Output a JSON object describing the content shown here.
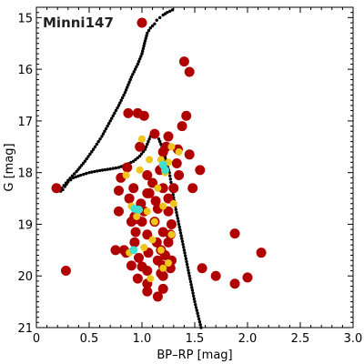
{
  "chart_data": {
    "type": "scatter",
    "title": "Minni147",
    "xlabel": "BP–RP [mag]",
    "ylabel": "G [mag]",
    "xlim": [
      0,
      3.0
    ],
    "ylim": [
      21,
      14.8
    ],
    "y_inverted": true,
    "xticks": [
      "0",
      "0.5",
      "1.0",
      "1.5",
      "2.0",
      "2.5",
      "3.0"
    ],
    "yticks": [
      "15",
      "16",
      "17",
      "18",
      "19",
      "20",
      "21"
    ],
    "grid": false,
    "colors": {
      "isochrone": "#000000",
      "low_prob": "#b00000",
      "mid_prob": "#f0c419",
      "high_prob": "#40e0d0"
    },
    "isochrone": {
      "name": "",
      "x": [
        1.56,
        1.5,
        1.45,
        1.4,
        1.35,
        1.31,
        1.28,
        1.26,
        1.23,
        1.21,
        1.18,
        1.16,
        1.13,
        1.11,
        1.08,
        1.06,
        1.03,
        0.98,
        0.92,
        0.85,
        0.78,
        0.7,
        0.6,
        0.5,
        0.42,
        0.35,
        0.3,
        0.27,
        0.25,
        0.23,
        0.24,
        0.3,
        0.38,
        0.46,
        0.54,
        0.62,
        0.7,
        0.78,
        0.84,
        0.9,
        0.96,
        1.0,
        1.03,
        1.05,
        1.08,
        1.12,
        1.14,
        1.17,
        1.2,
        1.24,
        1.29
      ],
      "y": [
        21.0,
        20.5,
        20.0,
        19.5,
        19.0,
        18.6,
        18.25,
        18.0,
        17.8,
        17.6,
        17.45,
        17.35,
        17.3,
        17.25,
        17.3,
        17.4,
        17.55,
        17.68,
        17.78,
        17.85,
        17.9,
        17.93,
        17.96,
        18.0,
        18.05,
        18.1,
        18.18,
        18.27,
        18.33,
        18.36,
        18.3,
        18.15,
        17.98,
        17.78,
        17.55,
        17.3,
        17.0,
        16.7,
        16.45,
        16.15,
        15.9,
        15.7,
        15.45,
        15.3,
        15.2,
        15.12,
        15.05,
        15.0,
        14.95,
        14.9,
        14.85
      ]
    },
    "series": [
      {
        "name": "",
        "x": [
          1.0,
          1.4,
          1.45,
          0.87,
          0.96,
          1.02,
          1.42,
          1.38,
          1.23,
          1.12,
          1.25,
          1.34,
          1.45,
          0.98,
          1.2,
          0.86,
          1.17,
          1.33,
          1.05,
          1.55,
          0.8,
          1.1,
          0.92,
          1.2,
          1.3,
          0.78,
          1.05,
          0.88,
          1.25,
          1.13,
          1.48,
          0.99,
          1.15,
          1.25,
          1.02,
          0.93,
          0.78,
          1.0,
          0.9,
          1.12,
          1.28,
          0.94,
          1.2,
          1.05,
          1.27,
          0.93,
          1.14,
          1.25,
          0.83,
          1.18,
          1.06,
          1.22,
          0.97,
          1.15,
          1.28,
          0.9,
          1.2,
          1.0,
          1.88,
          1.05,
          1.18,
          2.13,
          0.85,
          1.57,
          1.27,
          1.2,
          0.96,
          1.7,
          2.0,
          1.05,
          1.88,
          1.2,
          1.05,
          1.15,
          0.75,
          0.28,
          0.19,
          0.95,
          1.07,
          1.35
        ],
        "y": [
          15.1,
          15.85,
          16.05,
          16.85,
          16.85,
          16.9,
          16.9,
          17.1,
          17.5,
          17.25,
          17.3,
          17.55,
          17.65,
          17.5,
          17.6,
          17.9,
          17.95,
          17.82,
          18.05,
          17.95,
          18.1,
          18.2,
          18.3,
          18.3,
          18.3,
          18.35,
          18.4,
          18.5,
          18.5,
          18.55,
          18.3,
          18.6,
          18.7,
          18.75,
          18.75,
          18.85,
          18.75,
          18.95,
          18.95,
          18.95,
          19.0,
          19.15,
          19.15,
          19.2,
          19.2,
          19.35,
          19.35,
          19.35,
          19.5,
          19.5,
          19.55,
          19.6,
          19.65,
          19.7,
          19.7,
          19.8,
          19.8,
          19.82,
          19.18,
          19.9,
          19.95,
          19.55,
          19.55,
          19.85,
          19.85,
          20.0,
          20.05,
          20.0,
          20.03,
          20.15,
          20.15,
          20.25,
          20.3,
          20.4,
          19.5,
          19.9,
          18.3,
          18.9,
          18.4,
          18.05
        ]
      },
      {
        "name": "",
        "x": [
          1.0,
          0.85,
          0.98,
          1.07,
          1.18,
          1.28,
          1.35,
          1.22,
          1.25,
          1.15,
          1.3,
          0.9,
          1.05,
          1.2,
          1.12,
          0.95,
          1.28,
          1.1,
          1.02,
          1.18,
          0.88,
          1.25,
          1.2,
          1.08
        ],
        "y": [
          17.35,
          18.05,
          17.95,
          17.75,
          17.75,
          17.5,
          17.6,
          18.0,
          17.8,
          18.3,
          18.6,
          18.65,
          18.75,
          18.65,
          18.95,
          18.85,
          19.2,
          19.3,
          19.45,
          19.5,
          19.55,
          19.75,
          19.85,
          20.05
        ]
      },
      {
        "name": "",
        "x": [
          1.2,
          1.22,
          0.93,
          0.97,
          0.92
        ],
        "y": [
          17.85,
          17.95,
          18.7,
          18.72,
          19.5
        ]
      }
    ]
  }
}
